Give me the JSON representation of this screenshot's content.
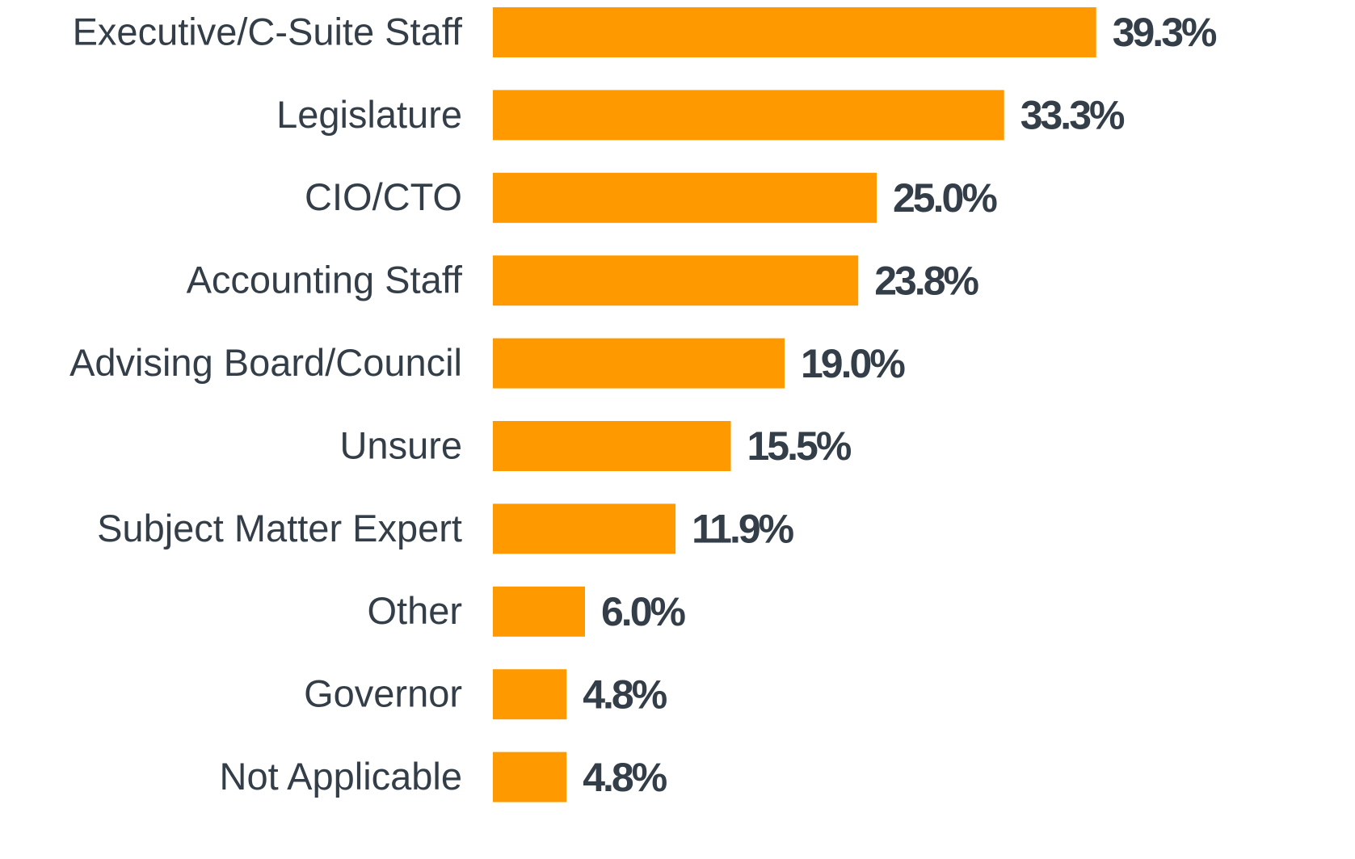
{
  "chart_data": {
    "type": "bar",
    "orientation": "horizontal",
    "color": "#ff9900",
    "categories": [
      "Executive/C-Suite Staff",
      "Legislature",
      "CIO/CTO",
      "Accounting Staff",
      "Advising Board/Council",
      "Unsure",
      "Subject Matter Expert",
      "Other",
      "Governor",
      "Not Applicable"
    ],
    "values": [
      39.3,
      33.3,
      25.0,
      23.8,
      19.0,
      15.5,
      11.9,
      6.0,
      4.8,
      4.8
    ],
    "value_labels": [
      "39.3%",
      "33.3%",
      "25.0%",
      "23.8%",
      "19.0%",
      "15.5%",
      "11.9%",
      "6.0%",
      "4.8%",
      "4.8%"
    ]
  }
}
